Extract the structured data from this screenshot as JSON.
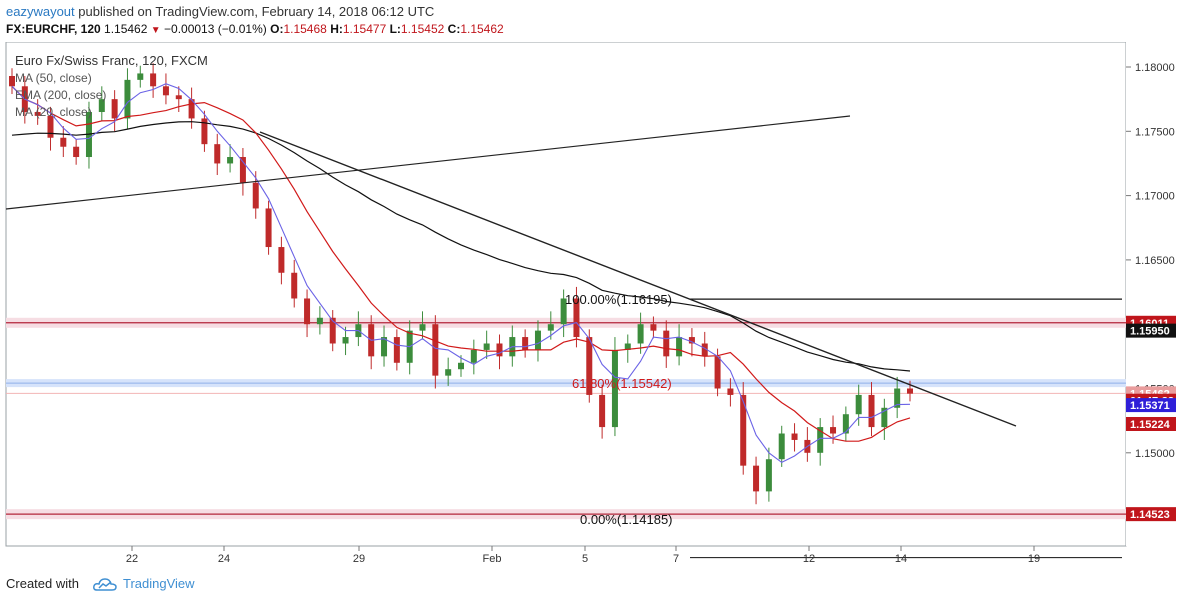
{
  "header": {
    "author": "eazywayout",
    "published_text": "published on TradingView.com, February 14, 2018 06:12 UTC",
    "symbol": "FX:EURCHF, 120",
    "last": "1.15462",
    "change": "−0.00013 (−0.01%)",
    "open_label": "O:",
    "open": "1.15468",
    "high_label": "H:",
    "high": "1.15477",
    "low_label": "L:",
    "low": "1.15452",
    "close_label": "C:",
    "close": "1.15462"
  },
  "legend": {
    "title": "Euro Fx/Swiss Franc, 120, FXCM",
    "items": [
      "MA (50, close)",
      "EMA (200, close)",
      "MA (20, close)"
    ]
  },
  "price_axis": {
    "ticks": [
      "1.18000",
      "1.17500",
      "1.17000",
      "1.16500",
      "1.16000",
      "1.15500",
      "1.15000"
    ],
    "tick_values": [
      1.18,
      1.175,
      1.17,
      1.165,
      1.16,
      1.155,
      1.15
    ],
    "badges": [
      {
        "text": "1.16011",
        "value": 1.16011,
        "bg": "#c0151b",
        "fg": "#ffffff"
      },
      {
        "text": "1.15950",
        "value": 1.1595,
        "bg": "#111111",
        "fg": "#ffffff"
      },
      {
        "text": "1.15462",
        "value": 1.15462,
        "bg": "#e99d9d",
        "fg": "#ffffff"
      },
      {
        "text": "01:47:33",
        "value": 1.15405,
        "bg": "#c0151b",
        "fg": "#ffffff"
      },
      {
        "text": "1.15371",
        "value": 1.15371,
        "bg": "#2f1fd8",
        "fg": "#ffffff"
      },
      {
        "text": "1.15224",
        "value": 1.15224,
        "bg": "#c0151b",
        "fg": "#ffffff"
      },
      {
        "text": "1.14523",
        "value": 1.14523,
        "bg": "#c0151b",
        "fg": "#ffffff"
      }
    ]
  },
  "time_axis": {
    "labels": [
      "22",
      "24",
      "29",
      "Feb",
      "5",
      "7",
      "12",
      "14",
      "19"
    ]
  },
  "annotations": {
    "fib_100": "100.00%(1.16195)",
    "fib_618": "61.80%(1.15542)",
    "fib_0": "0.00%(1.14185)"
  },
  "chart_data": {
    "type": "candlestick",
    "title": "Euro Fx/Swiss Franc, 120, FXCM",
    "ylim": [
      1.1418,
      1.1818
    ],
    "x_ticks": [
      "22",
      "24",
      "29",
      "Feb",
      "5",
      "7",
      "12",
      "14",
      "19"
    ],
    "close_path": [
      1.1785,
      1.1765,
      1.1762,
      1.1745,
      1.1738,
      1.173,
      1.1765,
      1.1775,
      1.176,
      1.179,
      1.1795,
      1.1785,
      1.1778,
      1.1775,
      1.176,
      1.174,
      1.1725,
      1.173,
      1.171,
      1.169,
      1.166,
      1.164,
      1.162,
      1.16,
      1.1605,
      1.1585,
      1.159,
      1.16,
      1.1575,
      1.159,
      1.157,
      1.1595,
      1.16,
      1.156,
      1.1565,
      1.157,
      1.158,
      1.1585,
      1.1575,
      1.159,
      1.158,
      1.1595,
      1.16,
      1.162,
      1.159,
      1.1545,
      1.152,
      1.158,
      1.1585,
      1.16,
      1.1595,
      1.1575,
      1.159,
      1.1585,
      1.1575,
      1.155,
      1.1545,
      1.149,
      1.147,
      1.1495,
      1.1515,
      1.151,
      1.15,
      1.152,
      1.1515,
      1.153,
      1.1545,
      1.152,
      1.1535,
      1.155,
      1.1546
    ],
    "series": [
      {
        "name": "MA (50, close)",
        "color": "#d11a1a"
      },
      {
        "name": "EMA (200, close)",
        "color": "#111111"
      },
      {
        "name": "MA (20, close)",
        "color": "#6b63e6"
      }
    ],
    "horizontal_levels": [
      1.16195,
      1.16011,
      1.1595,
      1.15542,
      1.15462,
      1.14523,
      1.14185
    ]
  }
}
